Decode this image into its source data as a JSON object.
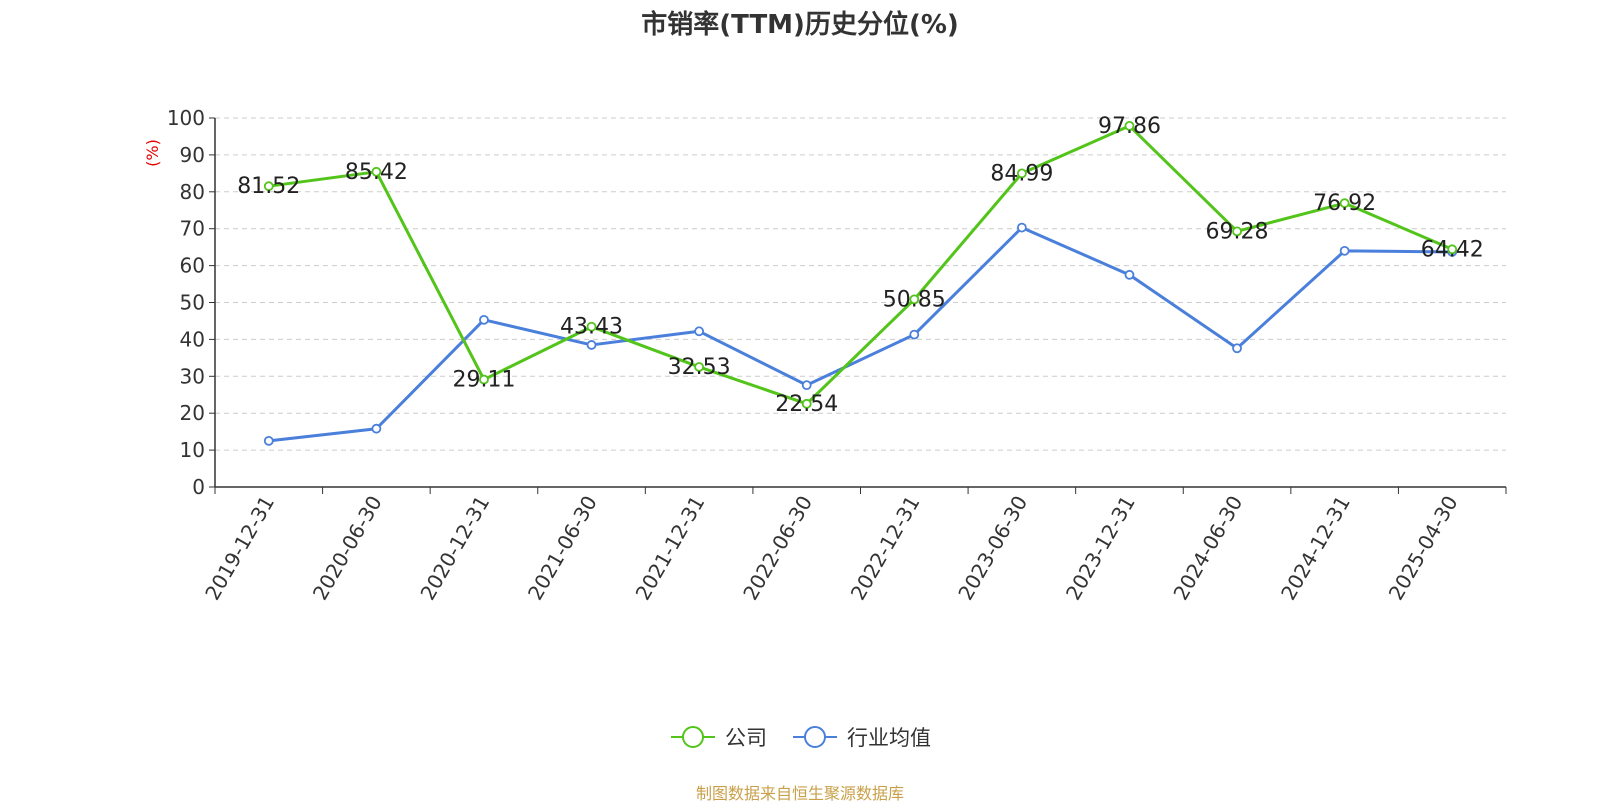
{
  "chart_data": {
    "type": "line",
    "title": "市销率(TTM)历史分位(%)",
    "ylabel": "(%)",
    "xlabel": "",
    "ylim": [
      0,
      100
    ],
    "yticks": [
      0,
      10,
      20,
      30,
      40,
      50,
      60,
      70,
      80,
      90,
      100
    ],
    "grid": true,
    "legend_position": "bottom",
    "categories": [
      "2019-12-31",
      "2020-06-30",
      "2020-12-31",
      "2021-06-30",
      "2021-12-31",
      "2022-06-30",
      "2022-12-31",
      "2023-06-30",
      "2023-12-31",
      "2024-06-30",
      "2024-12-31",
      "2025-04-30"
    ],
    "series": [
      {
        "name": "公司",
        "color": "#52c41a",
        "values": [
          81.52,
          85.42,
          29.11,
          43.43,
          32.53,
          22.54,
          50.85,
          84.99,
          97.86,
          69.28,
          76.92,
          64.42
        ],
        "labels": [
          "81.52",
          "85.42",
          "29.11",
          "43.43",
          "32.53",
          "22.54",
          "50.85",
          "84.99",
          "97.86",
          "69.28",
          "76.92",
          "64.42"
        ]
      },
      {
        "name": "行业均值",
        "color": "#4a7fdb",
        "values": [
          12.5,
          15.8,
          45.3,
          38.5,
          42.2,
          27.6,
          41.3,
          70.3,
          57.5,
          37.6,
          64.0,
          63.7
        ]
      }
    ]
  },
  "source_note": "制图数据来自恒生聚源数据库"
}
